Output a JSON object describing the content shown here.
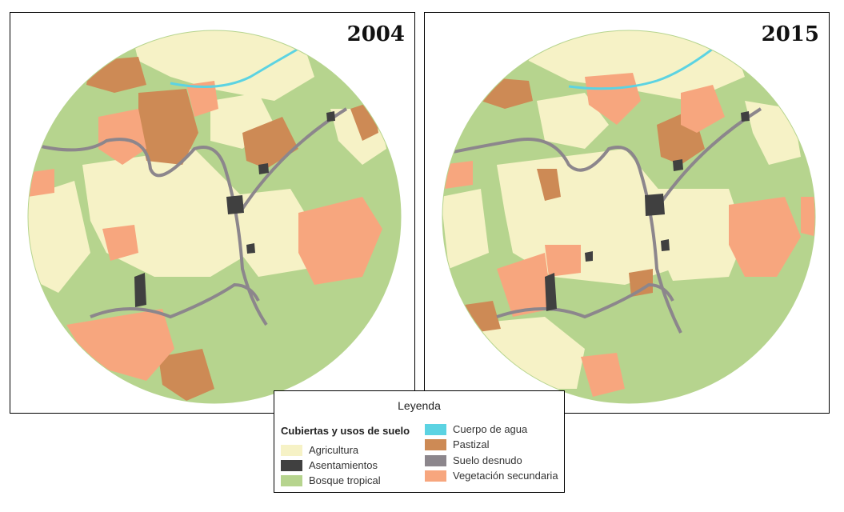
{
  "maps": [
    {
      "year": "2004"
    },
    {
      "year": "2015"
    }
  ],
  "legend": {
    "title": "Leyenda",
    "subtitle": "Cubiertas y usos de suelo",
    "items": [
      {
        "label": "Agricultura",
        "color": "#f6f2c6"
      },
      {
        "label": "Asentamientos",
        "color": "#404040"
      },
      {
        "label": "Bosque tropical",
        "color": "#b6d48e"
      },
      {
        "label": "Cuerpo de agua",
        "color": "#5cd3e2"
      },
      {
        "label": "Pastizal",
        "color": "#cd8a55"
      },
      {
        "label": "Suelo desnudo",
        "color": "#8c868c"
      },
      {
        "label": "Vegetación secundaria",
        "color": "#f7a67e"
      }
    ]
  }
}
